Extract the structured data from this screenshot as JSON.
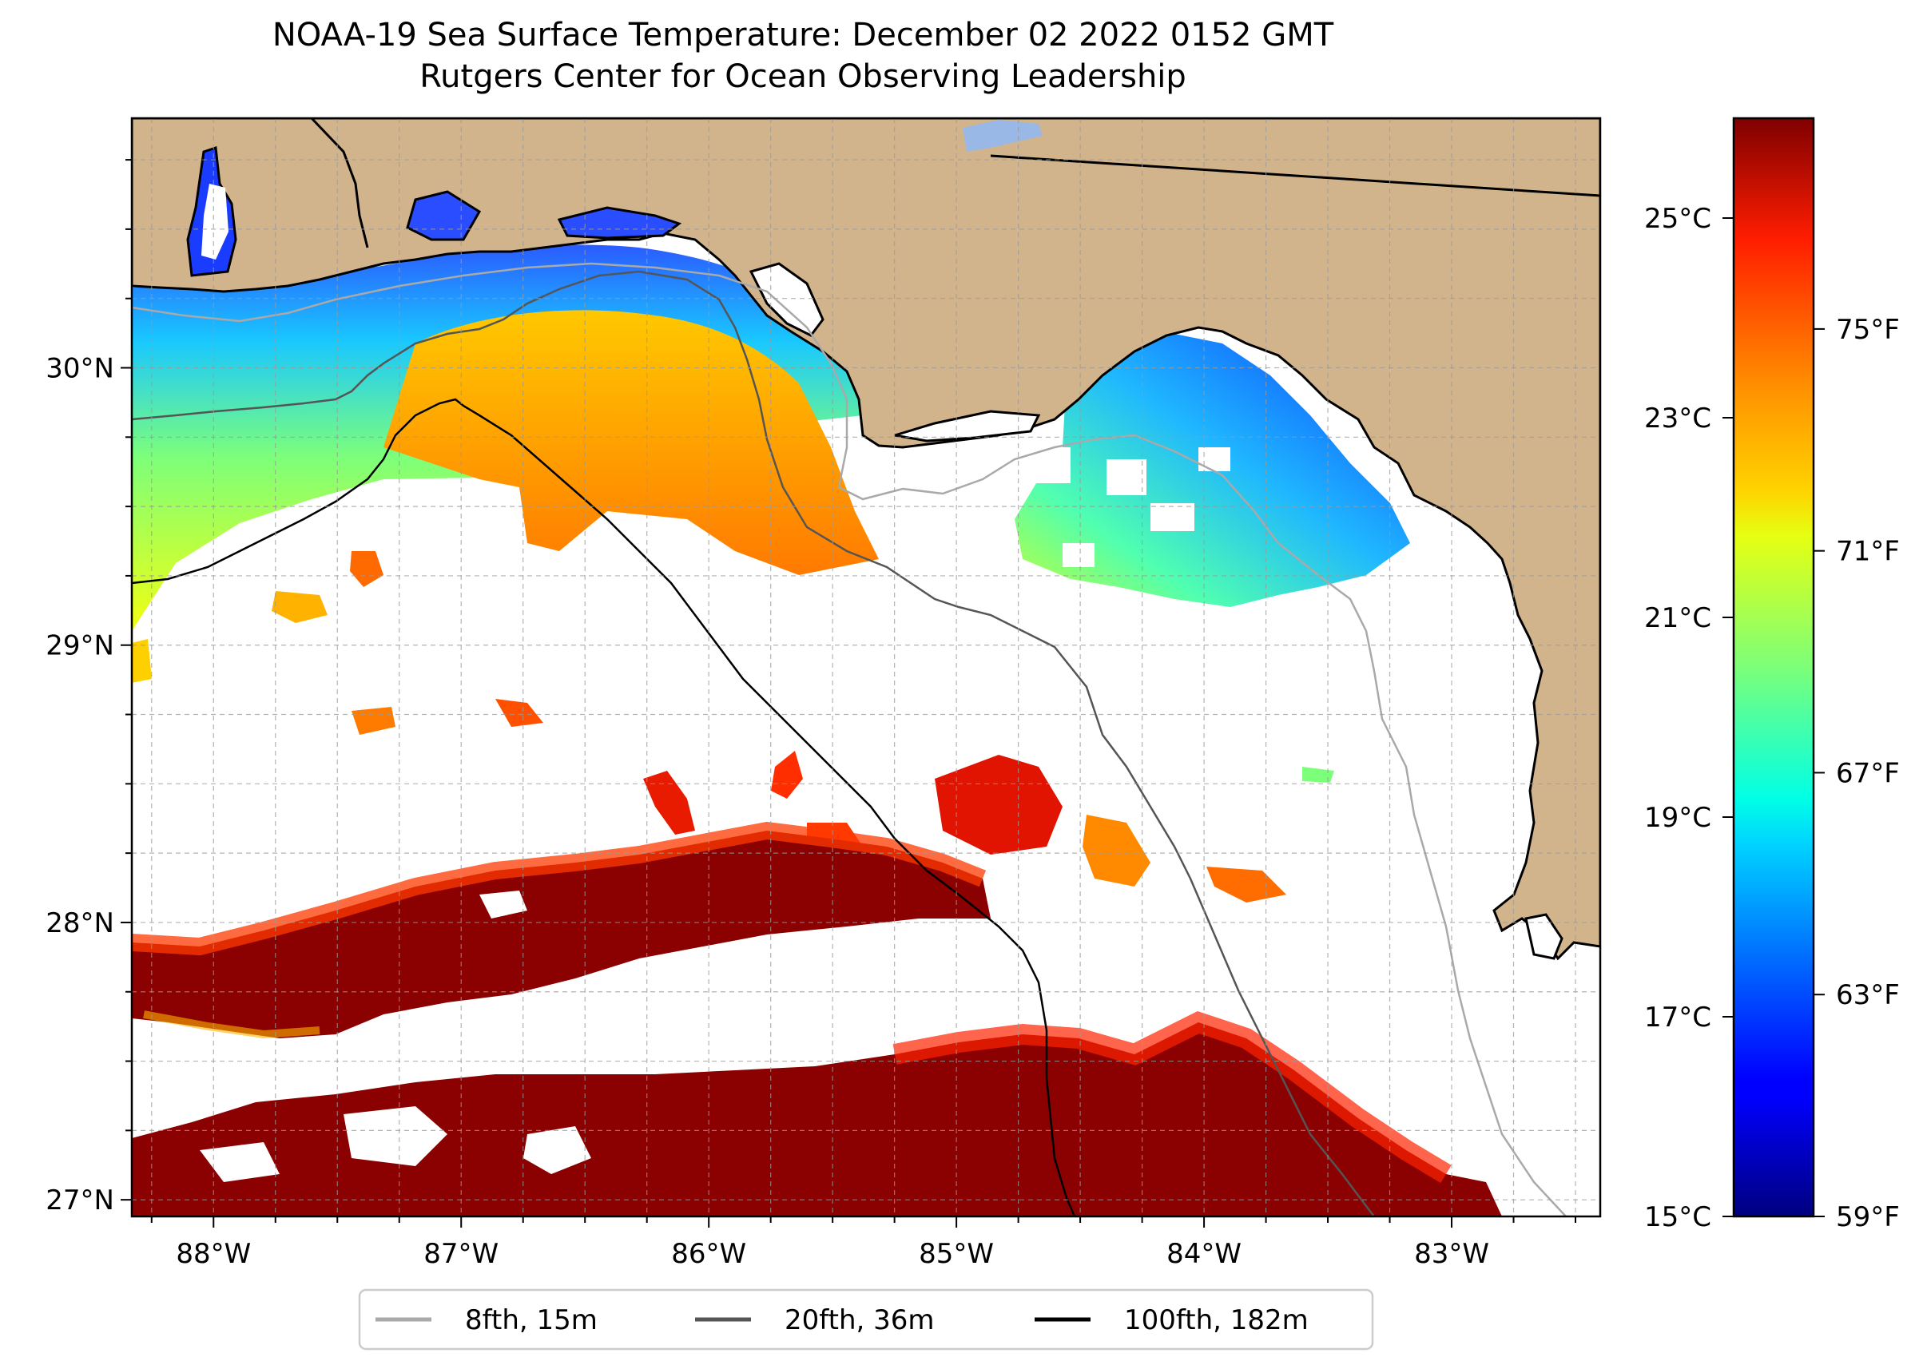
{
  "title": "NOAA-19 Sea Surface Temperature: December 02 2022 0152 GMT",
  "subtitle": "Rutgers Center for Ocean Observing Leadership",
  "map": {
    "lon_range": [
      -88.33,
      -82.4
    ],
    "lat_range": [
      26.94,
      30.9
    ],
    "lon_ticks": [
      {
        "value": -88,
        "label": "88°W"
      },
      {
        "value": -87,
        "label": "87°W"
      },
      {
        "value": -86,
        "label": "86°W"
      },
      {
        "value": -85,
        "label": "85°W"
      },
      {
        "value": -84,
        "label": "84°W"
      },
      {
        "value": -83,
        "label": "83°W"
      }
    ],
    "lat_ticks": [
      {
        "value": 27,
        "label": "27°N"
      },
      {
        "value": 28,
        "label": "28°N"
      },
      {
        "value": 29,
        "label": "29°N"
      },
      {
        "value": 30,
        "label": "30°N"
      }
    ],
    "gridlines": true,
    "land_color": "#d2b48c",
    "missing_data_color": "#ffffff"
  },
  "colorbar": {
    "colormap": "jet",
    "celsius_range": [
      15,
      26
    ],
    "celsius_ticks": [
      {
        "value": 15,
        "label": "15°C"
      },
      {
        "value": 17,
        "label": "17°C"
      },
      {
        "value": 19,
        "label": "19°C"
      },
      {
        "value": 21,
        "label": "21°C"
      },
      {
        "value": 23,
        "label": "23°C"
      },
      {
        "value": 25,
        "label": "25°C"
      }
    ],
    "fahrenheit_ticks": [
      {
        "value": 59,
        "label": "59°F"
      },
      {
        "value": 63,
        "label": "63°F"
      },
      {
        "value": 67,
        "label": "67°F"
      },
      {
        "value": 71,
        "label": "71°F"
      },
      {
        "value": 75,
        "label": "75°F"
      }
    ]
  },
  "legend": {
    "placement": "bottom-center",
    "items": [
      {
        "label": "8fth, 15m",
        "color": "#a9a9a9"
      },
      {
        "label": "20fth, 36m",
        "color": "#555555"
      },
      {
        "label": "100fth, 182m",
        "color": "#000000"
      }
    ]
  }
}
